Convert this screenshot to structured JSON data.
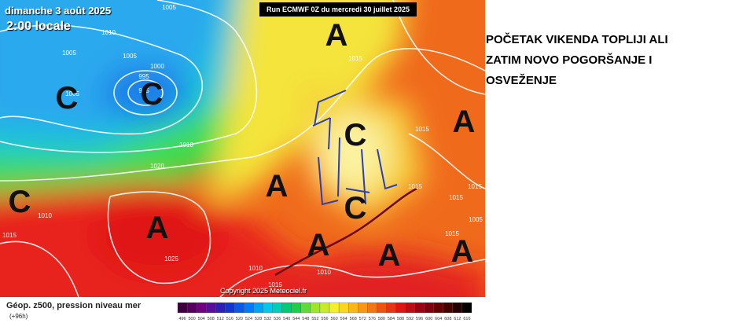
{
  "map": {
    "date": "dimanche 3 août 2025",
    "time": "2:00 locale",
    "run": "Run ECMWF 0Z du mercredi 30 juillet 2025",
    "copyright": "Copyright 2025 Meteociel.fr",
    "isobar_labels": [
      1005,
      1010,
      1005,
      1005,
      1000,
      995,
      985,
      1005,
      1010,
      1020,
      1015,
      1015,
      1015,
      1010,
      1025,
      1015,
      1010,
      1015,
      1015,
      1015,
      1005,
      1010,
      1015
    ],
    "pressure_centers": [
      "A",
      "C",
      "C",
      "A",
      "C",
      "A",
      "C",
      "C",
      "A",
      "A",
      "A",
      "A"
    ]
  },
  "headline": {
    "lines": [
      "POČETAK VIKENDA TOPLIJI ALI",
      "ZATIM NOVO POGORŠANJE I",
      "OSVEŽENJE"
    ]
  },
  "legend": {
    "title": "Géop. z500, pression niveau mer",
    "lead": "(+96h)",
    "scale": [
      496,
      500,
      504,
      508,
      512,
      516,
      520,
      524,
      528,
      532,
      536,
      540,
      544,
      548,
      552,
      556,
      560,
      564,
      568,
      572,
      576,
      580,
      584,
      588,
      592,
      596,
      600,
      604,
      608,
      612,
      616
    ]
  }
}
